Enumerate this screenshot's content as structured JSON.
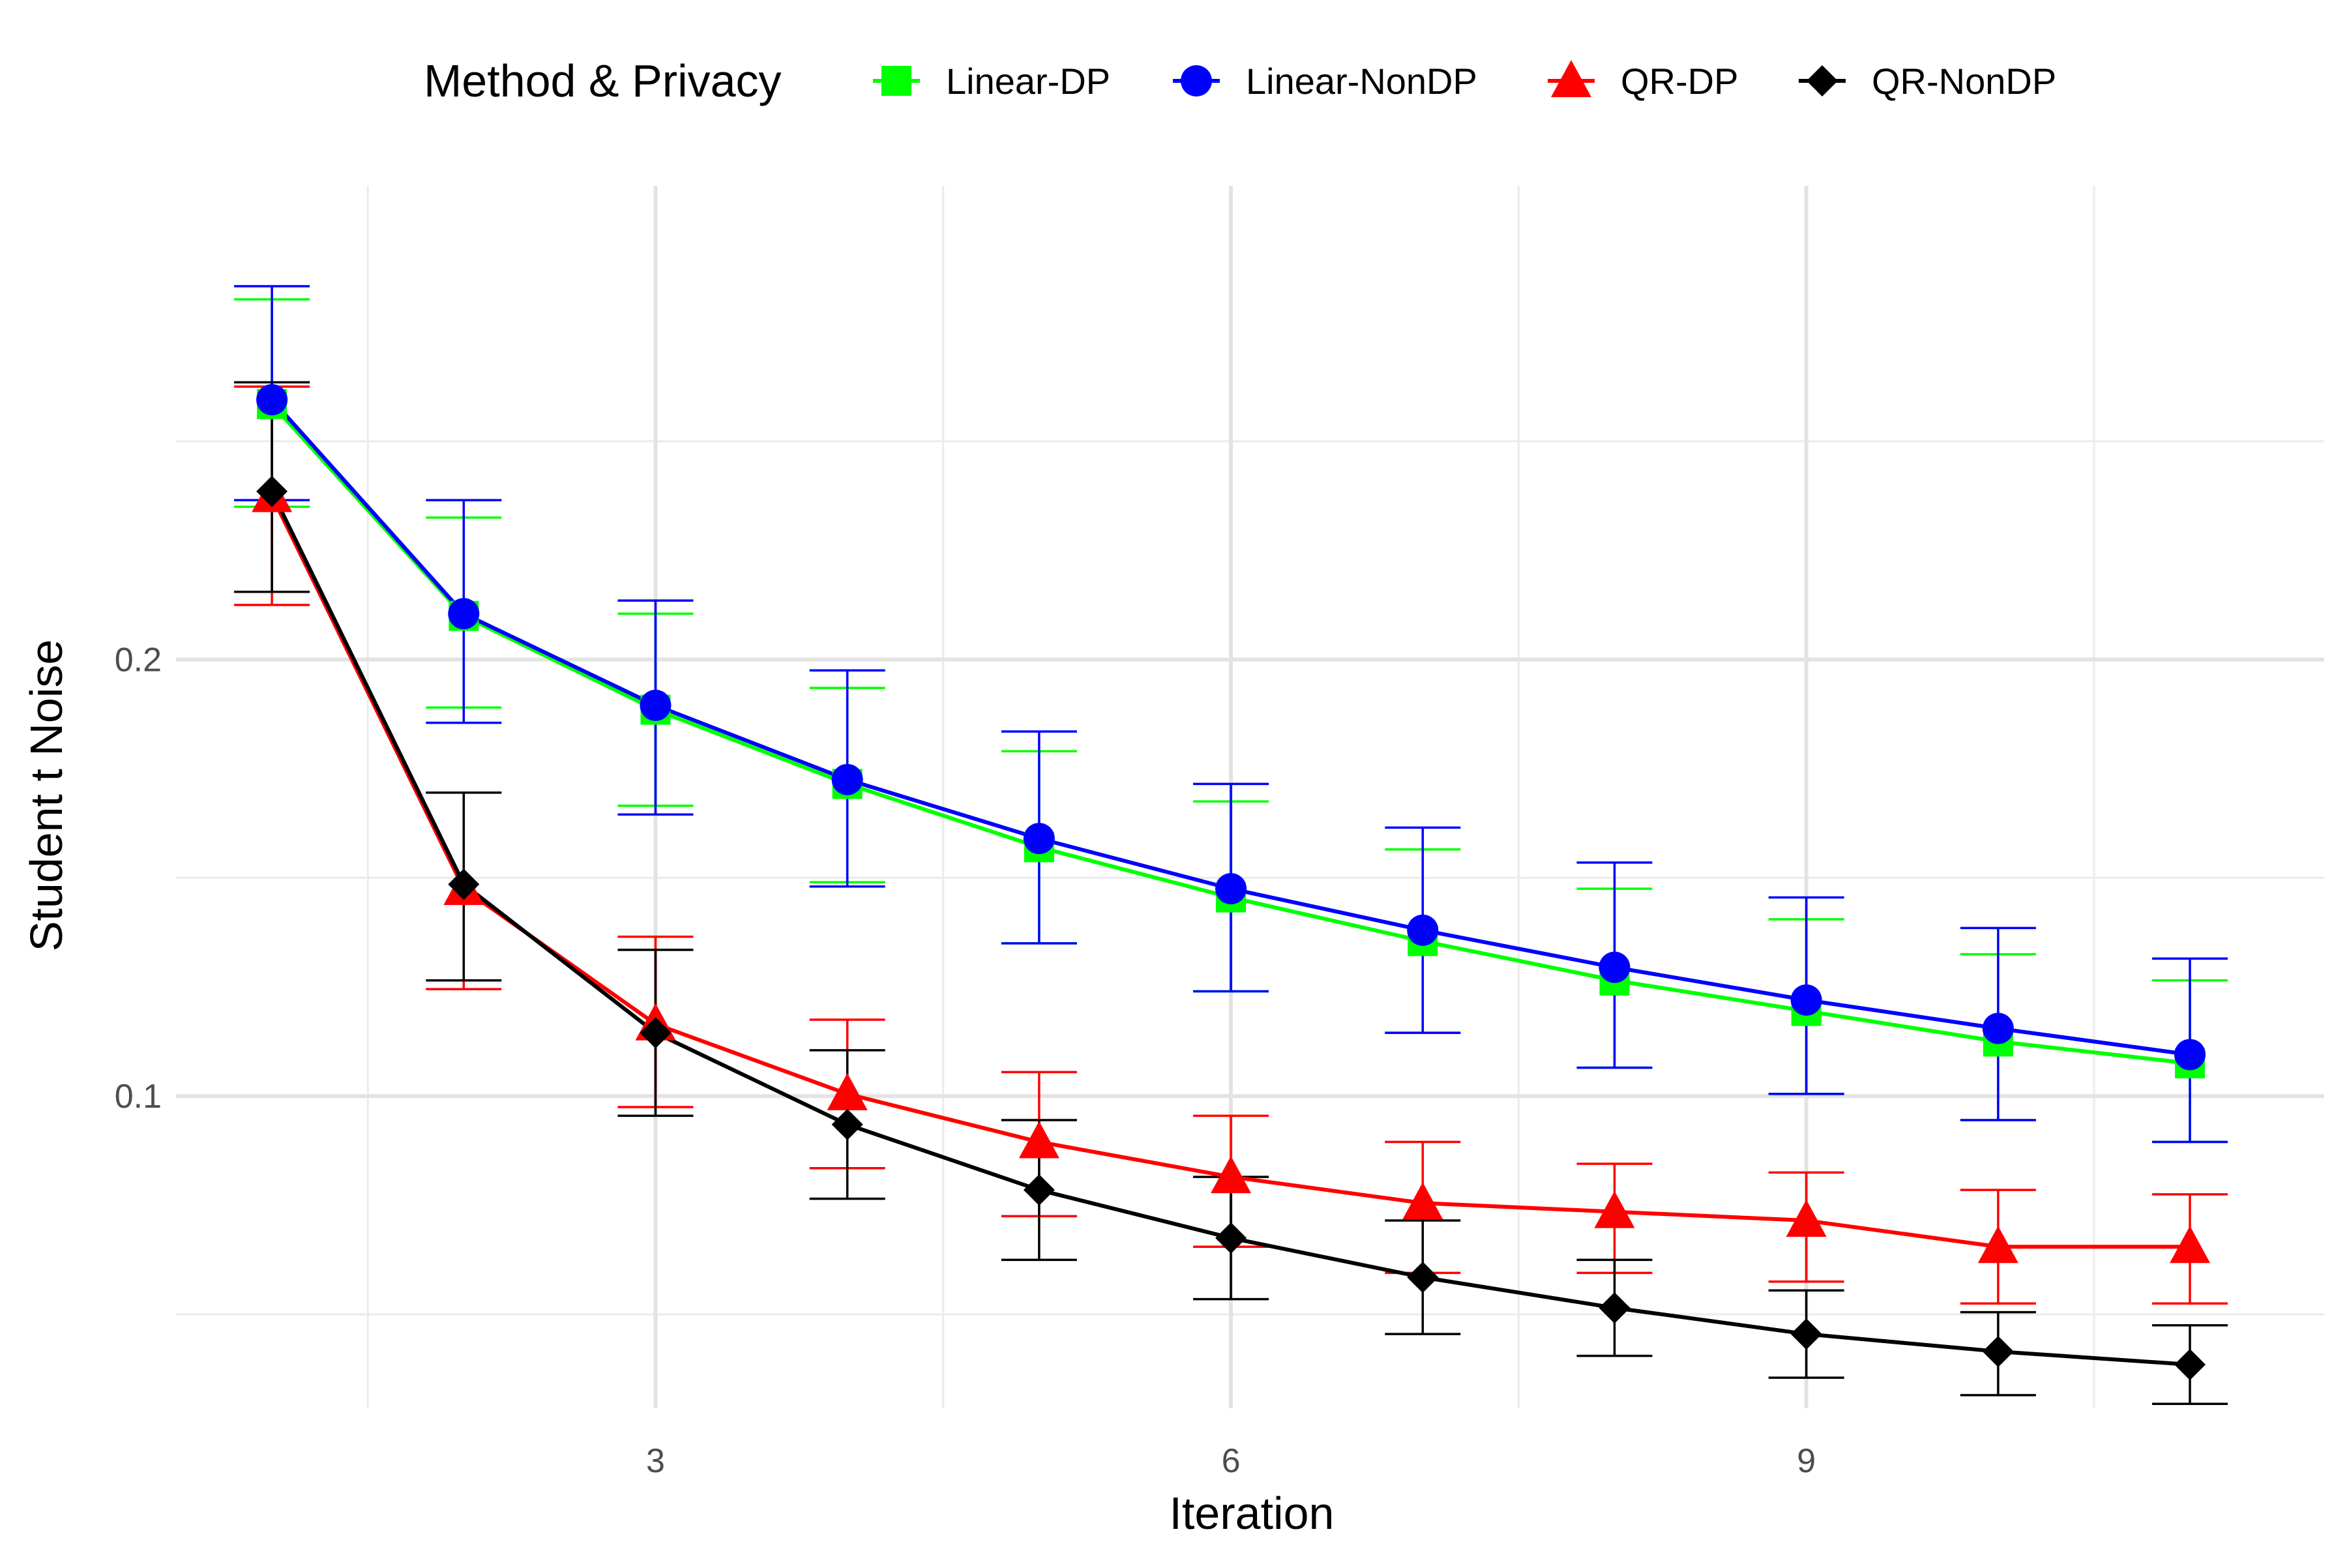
{
  "chart_data": {
    "type": "line",
    "title": "",
    "xlabel": "Iteration",
    "ylabel": "Student t Noise",
    "xlim": [
      0.5,
      11.7
    ],
    "ylim": [
      0.0285,
      0.3085
    ],
    "x_ticks": [
      3,
      6,
      9
    ],
    "x_tick_labels": [
      "3",
      "6",
      "9"
    ],
    "y_ticks": [
      0.1,
      0.2
    ],
    "y_tick_labels": [
      "0.1",
      "0.2"
    ],
    "x_minor_gridlines": [
      1.5,
      4.5,
      7.5,
      10.5
    ],
    "y_minor_gridlines": [
      0.05,
      0.15,
      0.25
    ],
    "grid": true,
    "error_bars": true,
    "legend": {
      "title": "Method & Privacy",
      "position": "top",
      "entries": [
        "Linear-DP",
        "Linear-NonDP",
        "QR-DP",
        "QR-NonDP"
      ]
    },
    "x": [
      1,
      2,
      3,
      4,
      5,
      6,
      7,
      8,
      9,
      10,
      11
    ],
    "series": [
      {
        "name": "Linear-DP",
        "color": "#00ff00",
        "marker": "square",
        "values": [
          0.2585,
          0.21,
          0.1885,
          0.1715,
          0.157,
          0.1455,
          0.1355,
          0.1265,
          0.1195,
          0.1125,
          0.1075
        ],
        "lower": [
          0.235,
          0.189,
          0.1665,
          0.149,
          0.135,
          0.124,
          0.1145,
          0.1065,
          0.1005,
          0.0945,
          0.0895
        ],
        "upper": [
          0.2825,
          0.2325,
          0.2105,
          0.1935,
          0.179,
          0.1675,
          0.1565,
          0.1475,
          0.1405,
          0.1325,
          0.1265
        ]
      },
      {
        "name": "Linear-NonDP",
        "color": "#0000ff",
        "marker": "circle",
        "values": [
          0.2595,
          0.2105,
          0.1895,
          0.1725,
          0.159,
          0.1475,
          0.138,
          0.1295,
          0.122,
          0.1155,
          0.1095
        ],
        "lower": [
          0.2365,
          0.1855,
          0.1645,
          0.148,
          0.135,
          0.124,
          0.1145,
          0.1065,
          0.1005,
          0.0945,
          0.0895
        ],
        "upper": [
          0.2855,
          0.2365,
          0.2135,
          0.1975,
          0.1835,
          0.1715,
          0.1615,
          0.1535,
          0.1455,
          0.1385,
          0.1315
        ]
      },
      {
        "name": "QR-DP",
        "color": "#ff0000",
        "marker": "triangle",
        "values": [
          0.2375,
          0.1475,
          0.1165,
          0.1005,
          0.0895,
          0.0815,
          0.0755,
          0.0735,
          0.0715,
          0.0655,
          0.0655
        ],
        "lower": [
          0.2125,
          0.1245,
          0.0975,
          0.0835,
          0.0725,
          0.0655,
          0.0595,
          0.0595,
          0.0575,
          0.0525,
          0.0525
        ],
        "upper": [
          0.2625,
          0.1695,
          0.1365,
          0.1175,
          0.1055,
          0.0955,
          0.0895,
          0.0845,
          0.0825,
          0.0785,
          0.0775
        ]
      },
      {
        "name": "QR-NonDP",
        "color": "#000000",
        "marker": "diamond",
        "values": [
          0.2385,
          0.1485,
          0.1145,
          0.0935,
          0.0785,
          0.0675,
          0.0585,
          0.0515,
          0.0455,
          0.0415,
          0.0385
        ],
        "lower": [
          0.2155,
          0.1265,
          0.0955,
          0.0765,
          0.0625,
          0.0535,
          0.0455,
          0.0405,
          0.0355,
          0.0315,
          0.0295
        ],
        "upper": [
          0.2635,
          0.1695,
          0.1335,
          0.1105,
          0.0945,
          0.0815,
          0.0715,
          0.0625,
          0.0555,
          0.0505,
          0.0475
        ]
      }
    ]
  }
}
